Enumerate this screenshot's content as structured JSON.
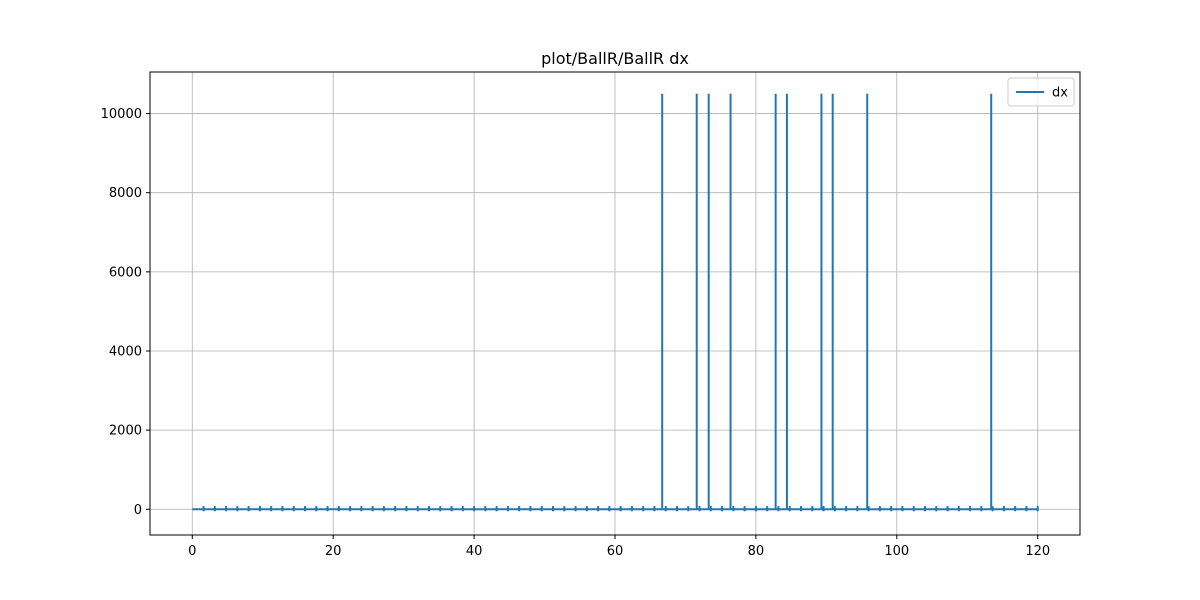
{
  "chart_data": {
    "type": "line",
    "title": "plot/BallR/BallR dx",
    "xlabel": "",
    "ylabel": "",
    "xlim": [
      -6,
      126
    ],
    "ylim": [
      -650,
      11050
    ],
    "x_ticks": [
      0,
      20,
      40,
      60,
      80,
      100,
      120
    ],
    "y_ticks": [
      0,
      2000,
      4000,
      6000,
      8000,
      10000
    ],
    "x_tick_labels": [
      "0",
      "20",
      "40",
      "60",
      "80",
      "100",
      "120"
    ],
    "y_tick_labels": [
      "0",
      "2000",
      "4000",
      "6000",
      "8000",
      "10000"
    ],
    "grid": true,
    "legend_position": "upper-right",
    "series": [
      {
        "name": "dx",
        "color": "#1f77b4",
        "x_range": [
          0,
          120
        ],
        "baseline_value": 0,
        "small_bump_period": 1.6,
        "small_bump_value": 80,
        "spike_value": 10500,
        "spike_x": [
          66.7,
          71.6,
          73.3,
          76.4,
          82.8,
          84.4,
          89.3,
          90.9,
          95.8,
          113.4
        ]
      }
    ]
  }
}
